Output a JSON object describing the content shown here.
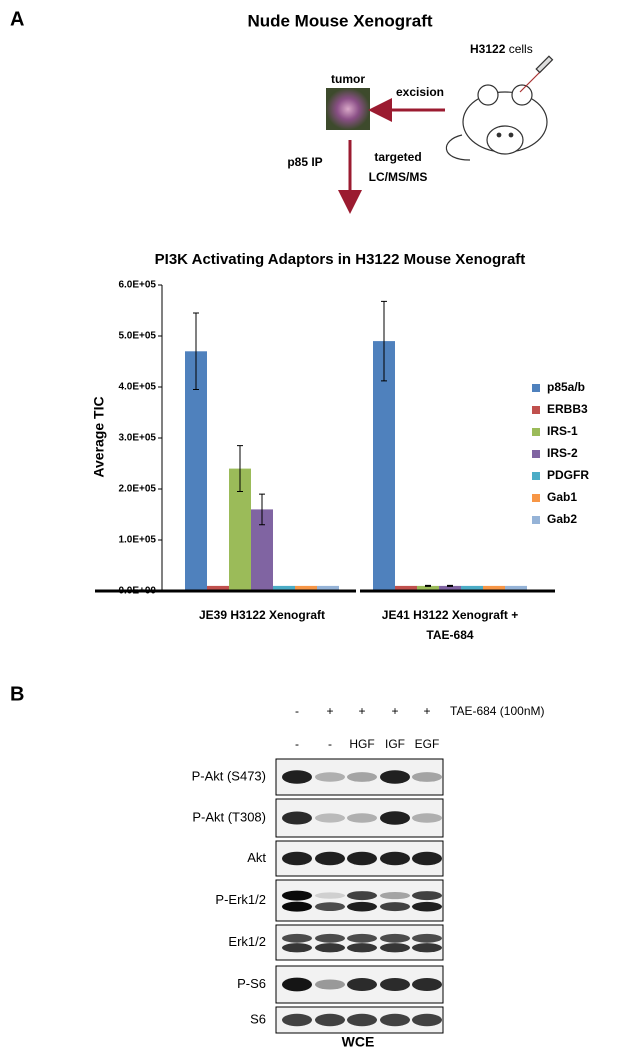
{
  "panel_a": {
    "label": "A",
    "title": "Nude Mouse Xenograft",
    "cell_line": "H3122",
    "cell_suffix": "cells",
    "tumor": "tumor",
    "excision": "excision",
    "ip": "p85 IP",
    "method": [
      "targeted",
      "LC/MS/MS"
    ]
  },
  "chart_data": {
    "type": "bar",
    "title": "PI3K Activating Adaptors in H3122 Mouse Xenograft",
    "y_label": "Average TIC",
    "categories": [
      "JE39 H3122 Xenograft",
      "JE41 H3122 Xenograft + TAE-684"
    ],
    "series": [
      {
        "name": "p85a/b",
        "color": "#4f81bd",
        "values": [
          470000,
          490000
        ],
        "errors": [
          75000,
          78000
        ]
      },
      {
        "name": "ERBB3",
        "color": "#c0504d",
        "values": [
          10000,
          10000
        ]
      },
      {
        "name": "IRS-1",
        "color": "#9bbb59",
        "values": [
          240000,
          10000
        ],
        "errors": [
          45000,
          1000
        ]
      },
      {
        "name": "IRS-2",
        "color": "#8064a2",
        "values": [
          160000,
          10000
        ],
        "errors": [
          30000,
          1000
        ]
      },
      {
        "name": "PDGFR",
        "color": "#4bacc6",
        "values": [
          10000,
          10000
        ]
      },
      {
        "name": "Gab1",
        "color": "#f79646",
        "values": [
          10000,
          10000
        ]
      },
      {
        "name": "Gab2",
        "color": "#95b3d7",
        "values": [
          10000,
          10000
        ]
      }
    ],
    "ylim": [
      0,
      600000
    ],
    "yticks": [
      {
        "value": 0,
        "label": "0.0E+00"
      },
      {
        "value": 100000,
        "label": "1.0E+05"
      },
      {
        "value": 200000,
        "label": "2.0E+05"
      },
      {
        "value": 300000,
        "label": "3.0E+05"
      },
      {
        "value": 400000,
        "label": "4.0E+05"
      },
      {
        "value": 500000,
        "label": "5.0E+05"
      },
      {
        "value": 600000,
        "label": "6.0E+05"
      }
    ],
    "legend": "right"
  },
  "panel_b": {
    "label": "B",
    "treatment": [
      "-",
      "+",
      "+",
      "+",
      "+"
    ],
    "treatment_label": "TAE-684 (100nM)",
    "stimulus": [
      "-",
      "-",
      "HGF",
      "IGF",
      "EGF"
    ],
    "blots": [
      "P-Akt (S473)",
      "P-Akt (T308)",
      "Akt",
      "P-Erk1/2",
      "Erk1/2",
      "P-S6",
      "S6"
    ],
    "footer": "WCE"
  }
}
